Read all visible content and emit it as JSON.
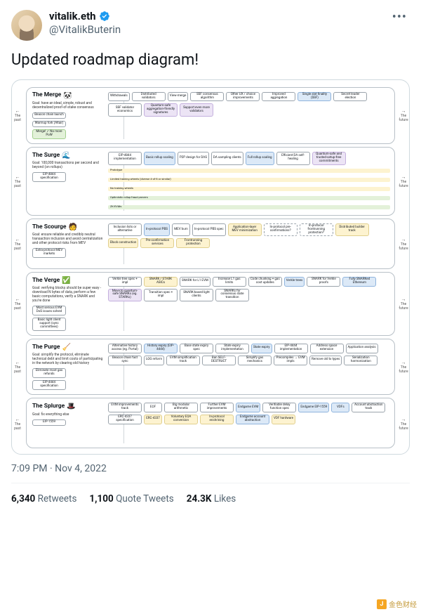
{
  "author": {
    "display_name": "vitalik.eth",
    "handle": "@VitalikButerin"
  },
  "tweet_text": "Updated roadmap diagram!",
  "timestamp": "7:09 PM · Nov 4, 2022",
  "stats": {
    "retweets_count": "6,340",
    "retweets_label": "Retweets",
    "quotes_count": "1,100",
    "quotes_label": "Quote Tweets",
    "likes_count": "24.3K",
    "likes_label": "Likes"
  },
  "watermark": "金色财经",
  "timeline": {
    "past": "The past",
    "future": "The future"
  },
  "sections": [
    {
      "title": "The Merge",
      "emoji": "🐼",
      "goal": "Goal: have an ideal, simple, robust and decentralized proof-of-stake consensus",
      "left_nodes": [
        {
          "t": "Beacon chain launch",
          "c": ""
        },
        {
          "t": "Warmup fork (Altair)",
          "c": ""
        },
        {
          "t": "Merge! ✓ No more PoW",
          "c": "green"
        }
      ],
      "nodes": [
        {
          "t": "Withdrawals",
          "c": ""
        },
        {
          "t": "Distributed validators",
          "c": ""
        },
        {
          "t": "View-merge",
          "c": ""
        },
        {
          "t": "SSF consensus algorithm",
          "c": ""
        },
        {
          "t": "Other UX / choice improvements",
          "c": ""
        },
        {
          "t": "Improved aggregation",
          "c": ""
        },
        {
          "t": "Single slot finality (SSF)",
          "c": "blue"
        },
        {
          "t": "Secret leader election",
          "c": ""
        },
        {
          "t": "SSF validator economics",
          "c": ""
        },
        {
          "t": "Quantum-safe aggregation-friendly signatures",
          "c": "purple"
        },
        {
          "t": "Support even more validators",
          "c": "purple"
        }
      ]
    },
    {
      "title": "The Surge",
      "emoji": "🌊",
      "goal": "Goal: 100,000 transactions per second and beyond (on rollups)",
      "left_nodes": [
        {
          "t": "EIP-4844 specification",
          "c": ""
        }
      ],
      "nodes": [
        {
          "t": "EIP-4844 implementation",
          "c": ""
        },
        {
          "t": "Basic rollup scaling",
          "c": "blue"
        },
        {
          "t": "P2P design for DAS",
          "c": ""
        },
        {
          "t": "DA sampling clients",
          "c": ""
        },
        {
          "t": "Full rollup scaling",
          "c": "blue"
        },
        {
          "t": "Efficient DA self-healing",
          "c": ""
        },
        {
          "t": "Quantum-safe and trusted-setup-free commitments",
          "c": "purple"
        }
      ],
      "strips": [
        {
          "t": "Prototype",
          "c": "y"
        },
        {
          "t": "Limited training wheels (diverse 4-of-8 or similar)",
          "c": "y"
        },
        {
          "t": "No training wheels",
          "c": "y"
        },
        {
          "t": "Optimistic rollup fraud provers",
          "c": "g"
        },
        {
          "t": "ZK-EVMs",
          "c": "g"
        }
      ]
    },
    {
      "title": "The Scourge",
      "emoji": "🧑",
      "goal": "Goal: ensure reliable and credibly neutral transaction inclusion and avoid centralization and other protocol risks from MEV",
      "left_nodes": [
        {
          "t": "Extra-protocol MEV markets",
          "c": ""
        }
      ],
      "nodes": [
        {
          "t": "Inclusion lists or alternative",
          "c": ""
        },
        {
          "t": "In-protocol PBS",
          "c": "blue"
        },
        {
          "t": "MEV burn",
          "c": ""
        },
        {
          "t": "In-protocol PBS spec",
          "c": ""
        },
        {
          "t": "Application-layer MEV minimization",
          "c": "yellow"
        },
        {
          "t": "In-protocol pre-confirmations?",
          "c": "dashed"
        },
        {
          "t": "In-protocol frontrunning protection?",
          "c": "dashed"
        },
        {
          "t": "Distributed builder track",
          "c": "yellow"
        },
        {
          "t": "Block construction",
          "c": "yellow"
        },
        {
          "t": "Pre-confirmation services",
          "c": "yellow"
        },
        {
          "t": "Frontrunning protection",
          "c": "yellow"
        }
      ]
    },
    {
      "title": "The Verge",
      "emoji": "✅",
      "goal": "Goal: verifying blocks should be super easy - download N bytes of data, perform a few basic computations, verify a SNARK and you're done",
      "left_nodes": [
        {
          "t": "Most serious EVM DoS issues solved",
          "c": ""
        },
        {
          "t": "Basic light client support (sync committees)",
          "c": ""
        }
      ],
      "nodes": [
        {
          "t": "Verkle tree spec + impl",
          "c": ""
        },
        {
          "t": "SNARK / STARK ASICs",
          "c": "yellow"
        },
        {
          "t": "SNARK for L1 EVM",
          "c": ""
        },
        {
          "t": "Increase L1 gas limits",
          "c": ""
        },
        {
          "t": "Code chunking + gas cost updates",
          "c": ""
        },
        {
          "t": "Verkle trees",
          "c": "blue"
        },
        {
          "t": "SNARK for Verkle proofs",
          "c": ""
        },
        {
          "t": "Fully SNARKed Ethereum",
          "c": "blue"
        },
        {
          "t": "Move to quantum-safe SNARKs (eg. STARKs)",
          "c": "purple"
        },
        {
          "t": "Transition spec + impl",
          "c": ""
        },
        {
          "t": "SNARK-based light clients",
          "c": ""
        },
        {
          "t": "SNARKs for consensus state transition",
          "c": ""
        }
      ]
    },
    {
      "title": "The Purge",
      "emoji": "🧹",
      "goal": "Goal: simplify the protocol, eliminate technical debt and limit costs of participating in the network by clearing old history",
      "left_nodes": [
        {
          "t": "Eliminate most gas refunds",
          "c": ""
        },
        {
          "t": "EIP-4444 specification",
          "c": ""
        }
      ],
      "nodes": [
        {
          "t": "Alternative history access (eg. Portal)",
          "c": ""
        },
        {
          "t": "History expiry (EIP-4444)",
          "c": "blue"
        },
        {
          "t": "Base state expiry spec",
          "c": ""
        },
        {
          "t": "State expiry implementation",
          "c": ""
        },
        {
          "t": "State expiry",
          "c": "blue"
        },
        {
          "t": "EIP-4444 implementation",
          "c": ""
        },
        {
          "t": "Address space extension",
          "c": ""
        },
        {
          "t": "Application analysis",
          "c": ""
        },
        {
          "t": "Beacon chain fast sync",
          "c": ""
        },
        {
          "t": "LOG reform",
          "c": ""
        },
        {
          "t": "EVM simplification track",
          "c": "y"
        },
        {
          "t": "Ban SELF-DESTRUCT",
          "c": ""
        },
        {
          "t": "Simplify gas mechanics",
          "c": ""
        },
        {
          "t": "Precompiles → EVM impls",
          "c": ""
        },
        {
          "t": "Remove old tx types",
          "c": ""
        },
        {
          "t": "Serialization harmonization",
          "c": ""
        }
      ]
    },
    {
      "title": "The Splurge",
      "emoji": "🎩",
      "goal": "Goal: fix everything else",
      "left_nodes": [
        {
          "t": "EIP-1559",
          "c": ""
        }
      ],
      "nodes": [
        {
          "t": "EVM improvements track",
          "c": "y"
        },
        {
          "t": "EOF",
          "c": ""
        },
        {
          "t": "Big modular arithmetic",
          "c": ""
        },
        {
          "t": "Further EVM improvements",
          "c": ""
        },
        {
          "t": "Endgame EVM",
          "c": "blue"
        },
        {
          "t": "Verifiable delay function spec",
          "c": ""
        },
        {
          "t": "Endgame EIP-1559",
          "c": "blue"
        },
        {
          "t": "VDFs",
          "c": "blue"
        },
        {
          "t": "Account abstraction track",
          "c": "y"
        },
        {
          "t": "ERC-4337 specification",
          "c": ""
        },
        {
          "t": "ERC-4337",
          "c": "yellow"
        },
        {
          "t": "Voluntary EOA conversion",
          "c": "yellow"
        },
        {
          "t": "In-protocol enshrining",
          "c": "yellow"
        },
        {
          "t": "Endgame account abstraction",
          "c": "blue"
        },
        {
          "t": "VDF hardware",
          "c": "yellow"
        }
      ]
    }
  ]
}
